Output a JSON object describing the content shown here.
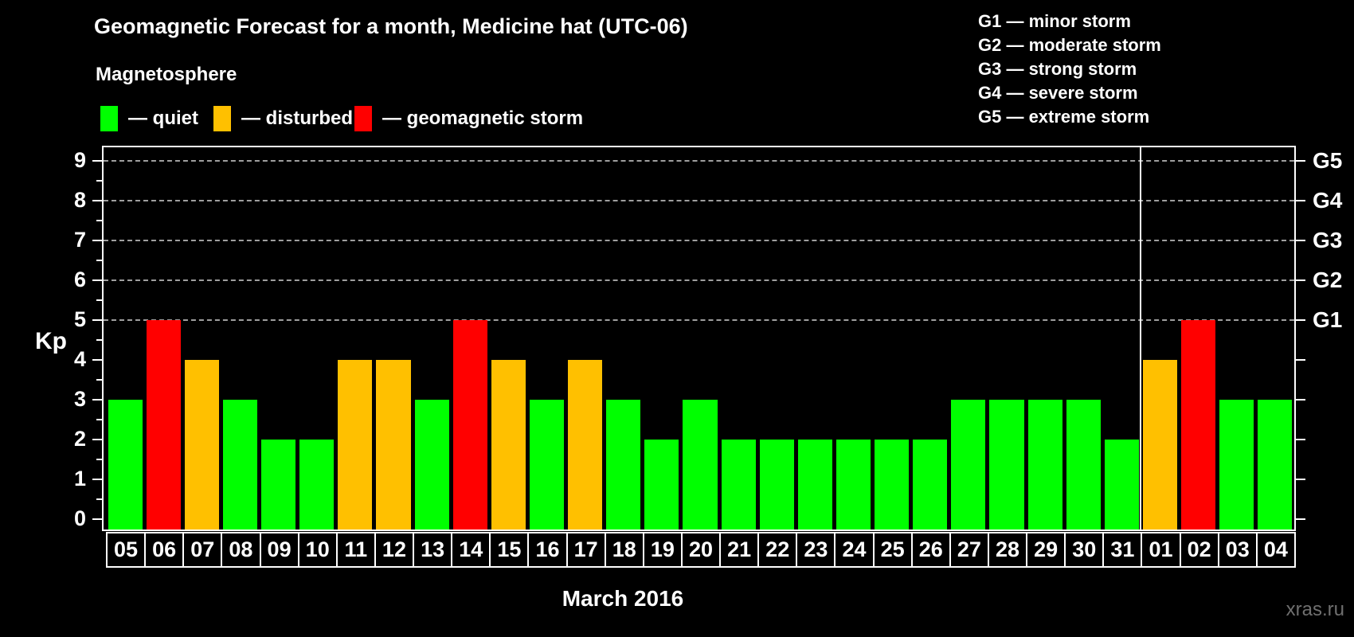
{
  "header": {
    "title": "Geomagnetic Forecast for a month, Medicine hat (UTC-06)",
    "subtitle": "Magnetosphere"
  },
  "status_legend": [
    {
      "key": "quiet",
      "color": "#00ff00",
      "label": "— quiet"
    },
    {
      "key": "disturbed",
      "color": "#ffc000",
      "label": "— disturbed"
    },
    {
      "key": "storm",
      "color": "#ff0000",
      "label": "— geomagnetic storm"
    }
  ],
  "gscale_legend": [
    "G1 — minor storm",
    "G2 — moderate storm",
    "G3 — strong storm",
    "G4 — severe storm",
    "G5 — extreme storm"
  ],
  "watermark": "xras.ru",
  "chart_data": {
    "type": "bar",
    "title": "Geomagnetic Forecast for a month, Medicine hat (UTC-06)",
    "xlabel": "March 2016",
    "ylabel": "Kp",
    "ylim": [
      0,
      9
    ],
    "grid": "dashed horizontal at Kp 5-9 only",
    "y_ticks": [
      0,
      1,
      2,
      3,
      4,
      5,
      6,
      7,
      8,
      9
    ],
    "right_axis_labels": [
      {
        "kp": 5,
        "label": "G1"
      },
      {
        "kp": 6,
        "label": "G2"
      },
      {
        "kp": 7,
        "label": "G3"
      },
      {
        "kp": 8,
        "label": "G4"
      },
      {
        "kp": 9,
        "label": "G5"
      }
    ],
    "gridlines_at": [
      5,
      6,
      7,
      8,
      9
    ],
    "month_separator_after_index": 26,
    "categories": [
      "05",
      "06",
      "07",
      "08",
      "09",
      "10",
      "11",
      "12",
      "13",
      "14",
      "15",
      "16",
      "17",
      "18",
      "19",
      "20",
      "21",
      "22",
      "23",
      "24",
      "25",
      "26",
      "27",
      "28",
      "29",
      "30",
      "31",
      "01",
      "02",
      "03",
      "04"
    ],
    "values": [
      3,
      5,
      4,
      3,
      2,
      2,
      4,
      4,
      3,
      5,
      4,
      3,
      4,
      3,
      2,
      3,
      2,
      2,
      2,
      2,
      2,
      2,
      3,
      3,
      3,
      3,
      2,
      4,
      5,
      3,
      3
    ],
    "statuses": [
      "quiet",
      "storm",
      "disturbed",
      "quiet",
      "quiet",
      "quiet",
      "disturbed",
      "disturbed",
      "quiet",
      "storm",
      "disturbed",
      "quiet",
      "disturbed",
      "quiet",
      "quiet",
      "quiet",
      "quiet",
      "quiet",
      "quiet",
      "quiet",
      "quiet",
      "quiet",
      "quiet",
      "quiet",
      "quiet",
      "quiet",
      "quiet",
      "disturbed",
      "storm",
      "quiet",
      "quiet"
    ],
    "status_colors": {
      "quiet": "#00ff00",
      "disturbed": "#ffc000",
      "storm": "#ff0000"
    },
    "axis_color": "#ffffff",
    "gridline_color": "#9f9f9f",
    "background_color": "#000000"
  }
}
